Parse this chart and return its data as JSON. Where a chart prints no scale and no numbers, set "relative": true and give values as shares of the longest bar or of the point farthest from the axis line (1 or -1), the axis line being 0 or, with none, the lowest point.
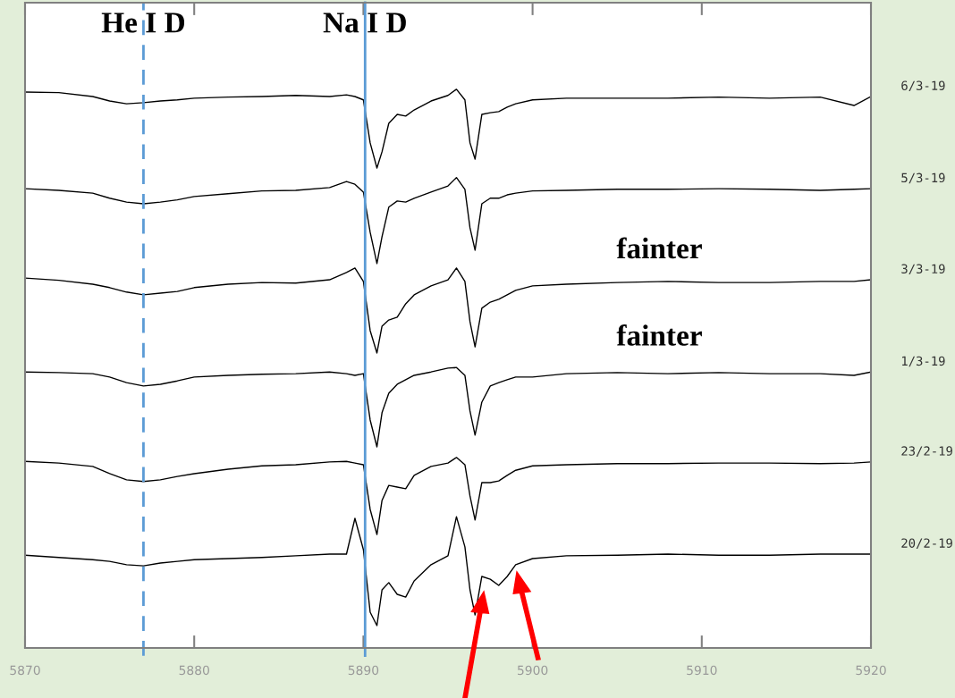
{
  "chart_data": {
    "type": "line",
    "relative": true,
    "x": [
      5870,
      5872,
      5874,
      5875,
      5876,
      5877,
      5878,
      5879,
      5880,
      5882,
      5884,
      5886,
      5888,
      5889,
      5889.5,
      5890,
      5890.4,
      5890.8,
      5891.1,
      5891.5,
      5892,
      5892.5,
      5893,
      5894,
      5895,
      5895.5,
      5896,
      5896.3,
      5896.6,
      5897,
      5897.5,
      5898,
      5898.5,
      5899,
      5900,
      5902,
      5905,
      5908,
      5911,
      5914,
      5917,
      5919,
      5920
    ],
    "series": [
      {
        "name": "6/3-19",
        "color": "#000000",
        "values": [
          0.995,
          0.994,
          0.987,
          0.979,
          0.974,
          0.976,
          0.979,
          0.981,
          0.984,
          0.986,
          0.987,
          0.989,
          0.987,
          0.99,
          0.987,
          0.981,
          0.904,
          0.859,
          0.888,
          0.939,
          0.955,
          0.952,
          0.963,
          0.979,
          0.989,
          1.0,
          0.981,
          0.904,
          0.875,
          0.955,
          0.958,
          0.96,
          0.968,
          0.974,
          0.981,
          0.984,
          0.984,
          0.984,
          0.986,
          0.984,
          0.986,
          0.971,
          0.987
        ]
      },
      {
        "name": "5/3-19",
        "color": "#000000",
        "values": [
          0.822,
          0.819,
          0.814,
          0.805,
          0.798,
          0.795,
          0.798,
          0.802,
          0.808,
          0.813,
          0.818,
          0.819,
          0.824,
          0.835,
          0.83,
          0.816,
          0.744,
          0.688,
          0.736,
          0.789,
          0.8,
          0.798,
          0.805,
          0.816,
          0.827,
          0.842,
          0.821,
          0.752,
          0.712,
          0.795,
          0.805,
          0.805,
          0.811,
          0.814,
          0.818,
          0.819,
          0.821,
          0.821,
          0.822,
          0.821,
          0.819,
          0.821,
          0.822
        ]
      },
      {
        "name": "3/3-19",
        "color": "#000000",
        "values": [
          0.662,
          0.658,
          0.651,
          0.645,
          0.637,
          0.632,
          0.635,
          0.638,
          0.645,
          0.651,
          0.654,
          0.653,
          0.659,
          0.672,
          0.68,
          0.656,
          0.568,
          0.528,
          0.576,
          0.587,
          0.592,
          0.616,
          0.632,
          0.648,
          0.659,
          0.68,
          0.656,
          0.584,
          0.539,
          0.608,
          0.619,
          0.624,
          0.632,
          0.64,
          0.648,
          0.651,
          0.654,
          0.656,
          0.654,
          0.654,
          0.656,
          0.656,
          0.659
        ]
      },
      {
        "name": "1/3-19",
        "color": "#000000",
        "values": [
          0.494,
          0.493,
          0.491,
          0.485,
          0.475,
          0.469,
          0.472,
          0.478,
          0.485,
          0.488,
          0.49,
          0.491,
          0.494,
          0.491,
          0.488,
          0.491,
          0.408,
          0.36,
          0.421,
          0.456,
          0.472,
          0.48,
          0.488,
          0.494,
          0.501,
          0.502,
          0.488,
          0.424,
          0.381,
          0.44,
          0.469,
          0.475,
          0.48,
          0.485,
          0.485,
          0.491,
          0.493,
          0.491,
          0.493,
          0.491,
          0.491,
          0.488,
          0.494
        ]
      },
      {
        "name": "23/2-19",
        "color": "#000000",
        "values": [
          0.334,
          0.331,
          0.325,
          0.312,
          0.301,
          0.298,
          0.301,
          0.307,
          0.312,
          0.32,
          0.326,
          0.328,
          0.333,
          0.334,
          0.331,
          0.328,
          0.248,
          0.203,
          0.264,
          0.291,
          0.288,
          0.285,
          0.309,
          0.325,
          0.331,
          0.341,
          0.328,
          0.272,
          0.229,
          0.296,
          0.296,
          0.299,
          0.309,
          0.318,
          0.326,
          0.328,
          0.33,
          0.33,
          0.331,
          0.331,
          0.33,
          0.331,
          0.333
        ]
      },
      {
        "name": "20/2-19",
        "color": "#000000",
        "values": [
          0.166,
          0.162,
          0.158,
          0.155,
          0.149,
          0.147,
          0.152,
          0.155,
          0.158,
          0.16,
          0.162,
          0.165,
          0.168,
          0.168,
          0.232,
          0.176,
          0.064,
          0.04,
          0.104,
          0.117,
          0.096,
          0.091,
          0.12,
          0.149,
          0.165,
          0.235,
          0.181,
          0.104,
          0.059,
          0.128,
          0.123,
          0.112,
          0.128,
          0.149,
          0.16,
          0.165,
          0.166,
          0.168,
          0.166,
          0.166,
          0.168,
          0.168,
          0.168
        ]
      }
    ],
    "xlim": [
      5870,
      5920
    ],
    "xticks": [
      5870,
      5880,
      5890,
      5900,
      5910,
      5920
    ],
    "ref_lines": [
      {
        "axis": "x",
        "value": 5877.0,
        "label": "He I D",
        "color": "#5b9bd5",
        "line_style": "dashed"
      },
      {
        "axis": "x",
        "value": 5890.1,
        "label": "Na I D",
        "color": "#5b9bd5",
        "line_style": "solid"
      }
    ],
    "annotations": [
      "fainter",
      "fainter"
    ],
    "grid": false,
    "legend": false
  }
}
